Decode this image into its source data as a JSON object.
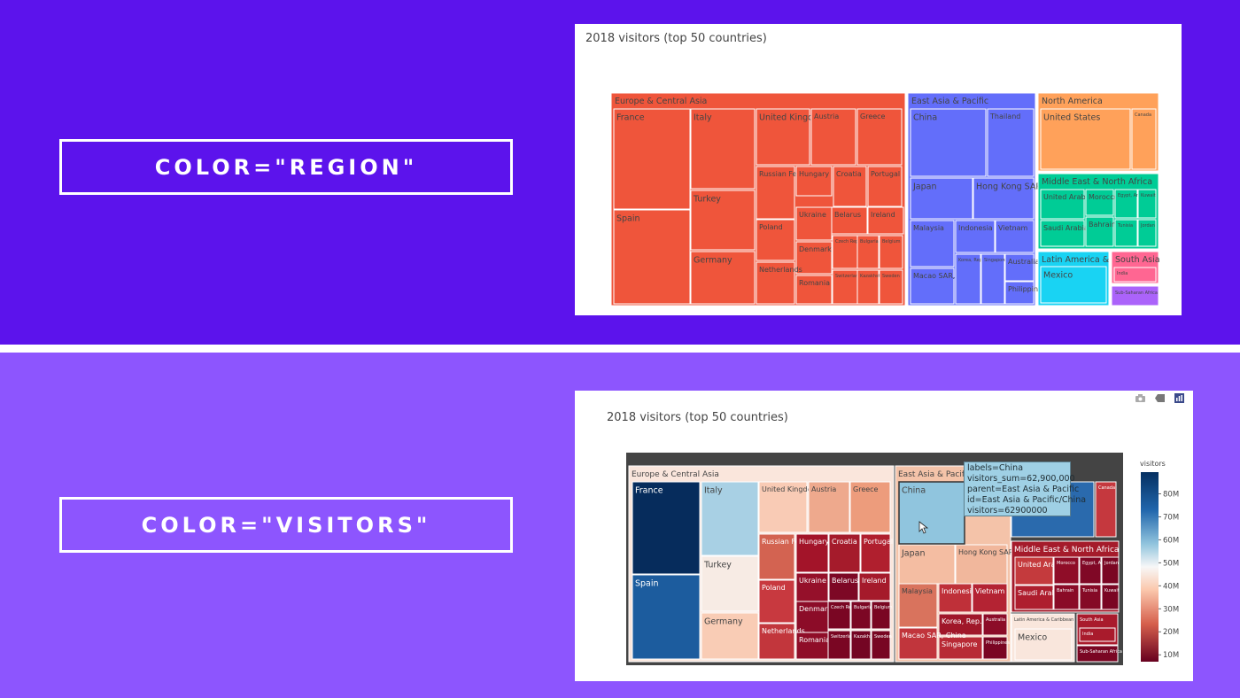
{
  "labels": {
    "top": "COLOR=\"REGION\"",
    "bottom": "COLOR=\"VISITORS\""
  },
  "toolbar": {
    "camera": "camera-icon",
    "tag": "tag-icon",
    "plotly": "plotly-logo-icon"
  },
  "chart_data": [
    {
      "type": "treemap",
      "title": "2018 visitors (top 50 countries)",
      "color_by": "region",
      "colors": {
        "Europe & Central Asia": "#ef553b",
        "East Asia & Pacific": "#636efa",
        "North America": "#ffa15a",
        "Middle East & North Africa": "#00cc96",
        "Latin America & Caribbean": "#19d3f3",
        "South Asia": "#ff6692",
        "Sub-Saharan Africa": "#ab63fa"
      },
      "regions": [
        {
          "name": "Europe & Central Asia",
          "countries": [
            "France",
            "Spain",
            "Italy",
            "Turkey",
            "Germany",
            "United Kingdom",
            "Austria",
            "Greece",
            "Russian Federation",
            "Hungary",
            "Croatia",
            "Portugal",
            "Poland",
            "Ukraine",
            "Belarus",
            "Ireland",
            "Denmark",
            "Czech Republic",
            "Bulgaria",
            "Belgium",
            "Netherlands",
            "Romania",
            "Switzerland",
            "Kazakhstan",
            "Sweden"
          ]
        },
        {
          "name": "East Asia & Pacific",
          "countries": [
            "China",
            "Thailand",
            "Japan",
            "Hong Kong SAR, China",
            "Malaysia",
            "Indonesia",
            "Vietnam",
            "Macao SAR, China",
            "Korea, Rep.",
            "Singapore",
            "Australia",
            "Philippines"
          ]
        },
        {
          "name": "North America",
          "countries": [
            "United States",
            "Canada"
          ]
        },
        {
          "name": "Middle East & North Africa",
          "countries": [
            "United Arab Emirates",
            "Morocco",
            "Egypt, Arab Rep.",
            "Kuwait",
            "Saudi Arabia",
            "Bahrain",
            "Tunisia",
            "Jordan"
          ]
        },
        {
          "name": "Latin America & Caribbean",
          "countries": [
            "Mexico"
          ]
        },
        {
          "name": "South Asia",
          "countries": [
            "India"
          ]
        },
        {
          "name": "Sub-Saharan Africa",
          "countries": []
        }
      ]
    },
    {
      "type": "treemap",
      "title": "2018 visitors (top 50 countries)",
      "color_by": "visitors",
      "colorbar": {
        "title": "visitors",
        "ticks": [
          "10M",
          "20M",
          "30M",
          "40M",
          "50M",
          "60M",
          "70M",
          "80M"
        ]
      },
      "tooltip": {
        "lines": [
          "labels=China",
          "visitors_sum=62,900,000",
          "parent=East Asia & Pacific",
          "id=East Asia & Pacific/China",
          "visitors=62900000"
        ]
      },
      "cells": [
        {
          "label": "Europe & Central Asia",
          "color": "#fae6dc"
        },
        {
          "label": "France",
          "color": "#062c5c",
          "visitors": 89.4
        },
        {
          "label": "Spain",
          "color": "#1c5c9e",
          "visitors": 82.8
        },
        {
          "label": "Italy",
          "color": "#a8d0e4"
        },
        {
          "label": "Turkey",
          "color": "#f7ebe4"
        },
        {
          "label": "Germany",
          "color": "#f9ccb5"
        },
        {
          "label": "United Kingdom",
          "color": "#f9cbb5"
        },
        {
          "label": "Austria",
          "color": "#eea98d"
        },
        {
          "label": "Greece",
          "color": "#ed9c7c"
        },
        {
          "label": "Russian Federation",
          "color": "#d36351"
        },
        {
          "label": "Hungary",
          "color": "#a31429"
        },
        {
          "label": "Croatia",
          "color": "#a51b2b"
        },
        {
          "label": "Portugal",
          "color": "#b01f2e"
        },
        {
          "label": "Poland",
          "color": "#c8393f"
        },
        {
          "label": "Ukraine",
          "color": "#95102a"
        },
        {
          "label": "Belarus",
          "color": "#7d0825"
        },
        {
          "label": "Ireland",
          "color": "#a51a2b"
        },
        {
          "label": "Denmark",
          "color": "#8c0c28"
        },
        {
          "label": "Czech Republic",
          "color": "#7a0623"
        },
        {
          "label": "Bulgaria",
          "color": "#7c0724"
        },
        {
          "label": "Belgium",
          "color": "#7a0623"
        },
        {
          "label": "Netherlands",
          "color": "#c2363c"
        },
        {
          "label": "Romania",
          "color": "#8f0d28"
        },
        {
          "label": "Switzerland",
          "color": "#7a0623"
        },
        {
          "label": "Kazakhstan",
          "color": "#740523"
        },
        {
          "label": "Sweden",
          "color": "#780623"
        },
        {
          "label": "East Asia & Pacific",
          "color": "#f4c3a9"
        },
        {
          "label": "China",
          "color": "#90c5de",
          "visitors": 62.9
        },
        {
          "label": "Japan",
          "color": "#f4bda2"
        },
        {
          "label": "Hong Kong SAR, China",
          "color": "#f1b79c"
        },
        {
          "label": "Malaysia",
          "color": "#d9735d"
        },
        {
          "label": "Indonesia",
          "color": "#bf3039"
        },
        {
          "label": "Vietnam",
          "color": "#b42333"
        },
        {
          "label": "Korea, Rep.",
          "color": "#a01729"
        },
        {
          "label": "Singapore",
          "color": "#b82a35"
        },
        {
          "label": "Macao SAR, China",
          "color": "#c1353c"
        },
        {
          "label": "Australia",
          "color": "#8c0c28"
        },
        {
          "label": "Philippines",
          "color": "#7a0623"
        },
        {
          "label": "Canada",
          "color": "#c5383e"
        },
        {
          "label": "Middle East & North Africa",
          "color": "#a51b2b"
        },
        {
          "label": "United Arab Emirates",
          "color": "#c43a3d"
        },
        {
          "label": "Morocco",
          "color": "#8f0d28"
        },
        {
          "label": "Egypt, Arab Rep.",
          "color": "#800826"
        },
        {
          "label": "Jordan",
          "color": "#7a0623"
        },
        {
          "label": "Saudi Arabia",
          "color": "#ae1e2e"
        },
        {
          "label": "Bahrain",
          "color": "#8a0b27"
        },
        {
          "label": "Tunisia",
          "color": "#850a26"
        },
        {
          "label": "Kuwait",
          "color": "#7a0623"
        },
        {
          "label": "Latin America & Caribbean",
          "color": "#f9e6dc"
        },
        {
          "label": "Mexico",
          "color": "#f9e6dc"
        },
        {
          "label": "South Asia",
          "color": "#a91b2c"
        },
        {
          "label": "India",
          "color": "#a91b2c"
        },
        {
          "label": "Sub-Saharan Africa",
          "color": "#7a0623"
        }
      ]
    }
  ]
}
